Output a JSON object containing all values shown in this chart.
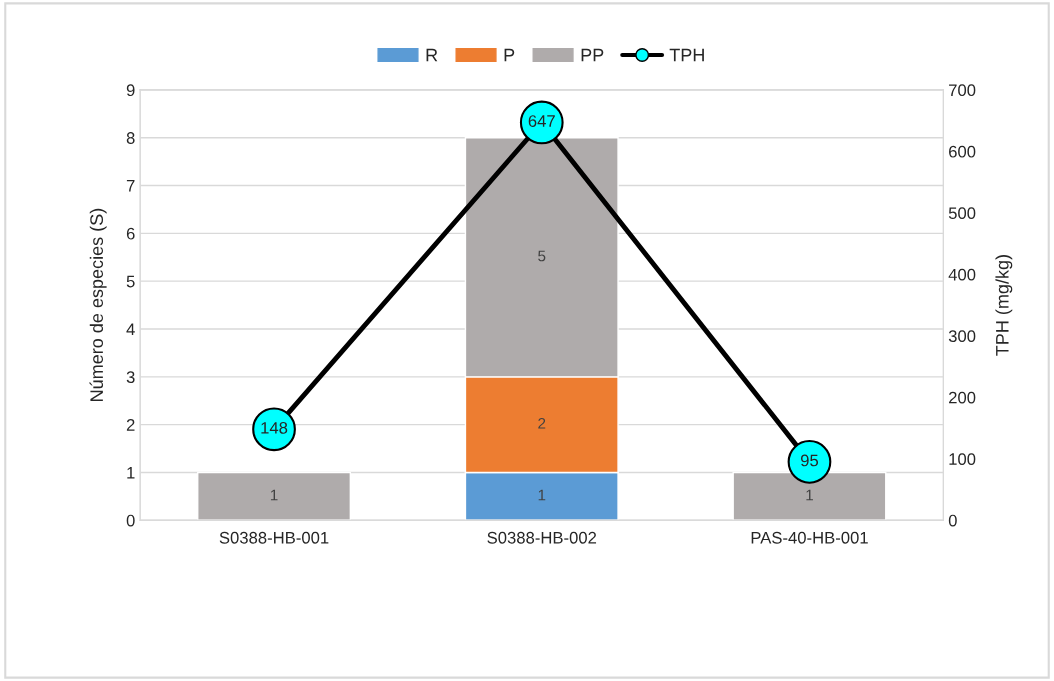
{
  "chart_data": {
    "type": "bar",
    "stacked": true,
    "categories": [
      "S0388-HB-001",
      "S0388-HB-002",
      "PAS-40-HB-001"
    ],
    "ylabel": "Número de especies (S)",
    "y2label": "TPH (mg/kg)",
    "ylim": [
      0,
      9
    ],
    "yticks": [
      0,
      1,
      2,
      3,
      4,
      5,
      6,
      7,
      8,
      9
    ],
    "y2lim": [
      0,
      700
    ],
    "y2ticks": [
      0,
      100,
      200,
      300,
      400,
      500,
      600,
      700
    ],
    "grid": "y",
    "legend": "top",
    "series": [
      {
        "name": "R",
        "color": "#5b9bd5",
        "values": [
          0,
          1,
          0
        ],
        "value_labels": [
          null,
          "1",
          null
        ]
      },
      {
        "name": "P",
        "color": "#ed7d31",
        "values": [
          0,
          2,
          0
        ],
        "value_labels": [
          null,
          "2",
          null
        ]
      },
      {
        "name": "PP",
        "color": "#afabab",
        "values": [
          1,
          5,
          1
        ],
        "value_labels": [
          "1",
          "5",
          "1"
        ]
      },
      {
        "name": "TPH",
        "type": "line",
        "axis": "y2",
        "color": "#000000",
        "colors": [
          "#00ffff",
          "#00ffff",
          "#00ffff"
        ],
        "marker": "circle",
        "line_style": "solid",
        "values": [
          148,
          647,
          95
        ],
        "value_labels": [
          "148",
          "647",
          "95"
        ]
      }
    ]
  }
}
